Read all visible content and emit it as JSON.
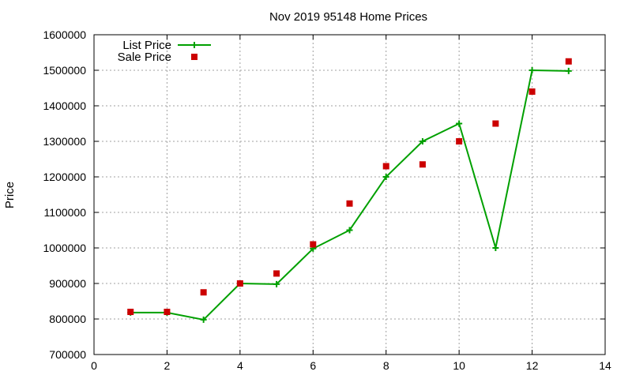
{
  "chart_data": {
    "type": "line",
    "title": "Nov 2019 95148 Home Prices",
    "xlabel": "",
    "ylabel": "Price",
    "xlim": [
      0,
      14
    ],
    "ylim": [
      700000,
      1600000
    ],
    "xticks": [
      "0",
      "2",
      "4",
      "6",
      "8",
      "10",
      "12",
      "14"
    ],
    "yticks": [
      "700000",
      "800000",
      "900000",
      "1000000",
      "1100000",
      "1200000",
      "1300000",
      "1400000",
      "1500000",
      "1600000"
    ],
    "grid": true,
    "legend_position": "top-left",
    "series": [
      {
        "name": "List Price",
        "style": "line+cross",
        "color": "#00a000",
        "x": [
          1,
          2,
          3,
          4,
          5,
          6,
          7,
          8,
          9,
          10,
          11,
          12,
          13
        ],
        "y": [
          818000,
          818000,
          798000,
          900000,
          898000,
          998000,
          1050000,
          1200000,
          1300000,
          1350000,
          1000000,
          1500000,
          1498000
        ]
      },
      {
        "name": "Sale Price",
        "style": "square",
        "color": "#cc0000",
        "x": [
          1,
          2,
          3,
          4,
          5,
          6,
          7,
          8,
          9,
          10,
          11,
          12,
          13
        ],
        "y": [
          820000,
          820000,
          875000,
          900000,
          928000,
          1010000,
          1125000,
          1230000,
          1235000,
          1300000,
          1350000,
          1440000,
          1525000
        ]
      }
    ]
  }
}
